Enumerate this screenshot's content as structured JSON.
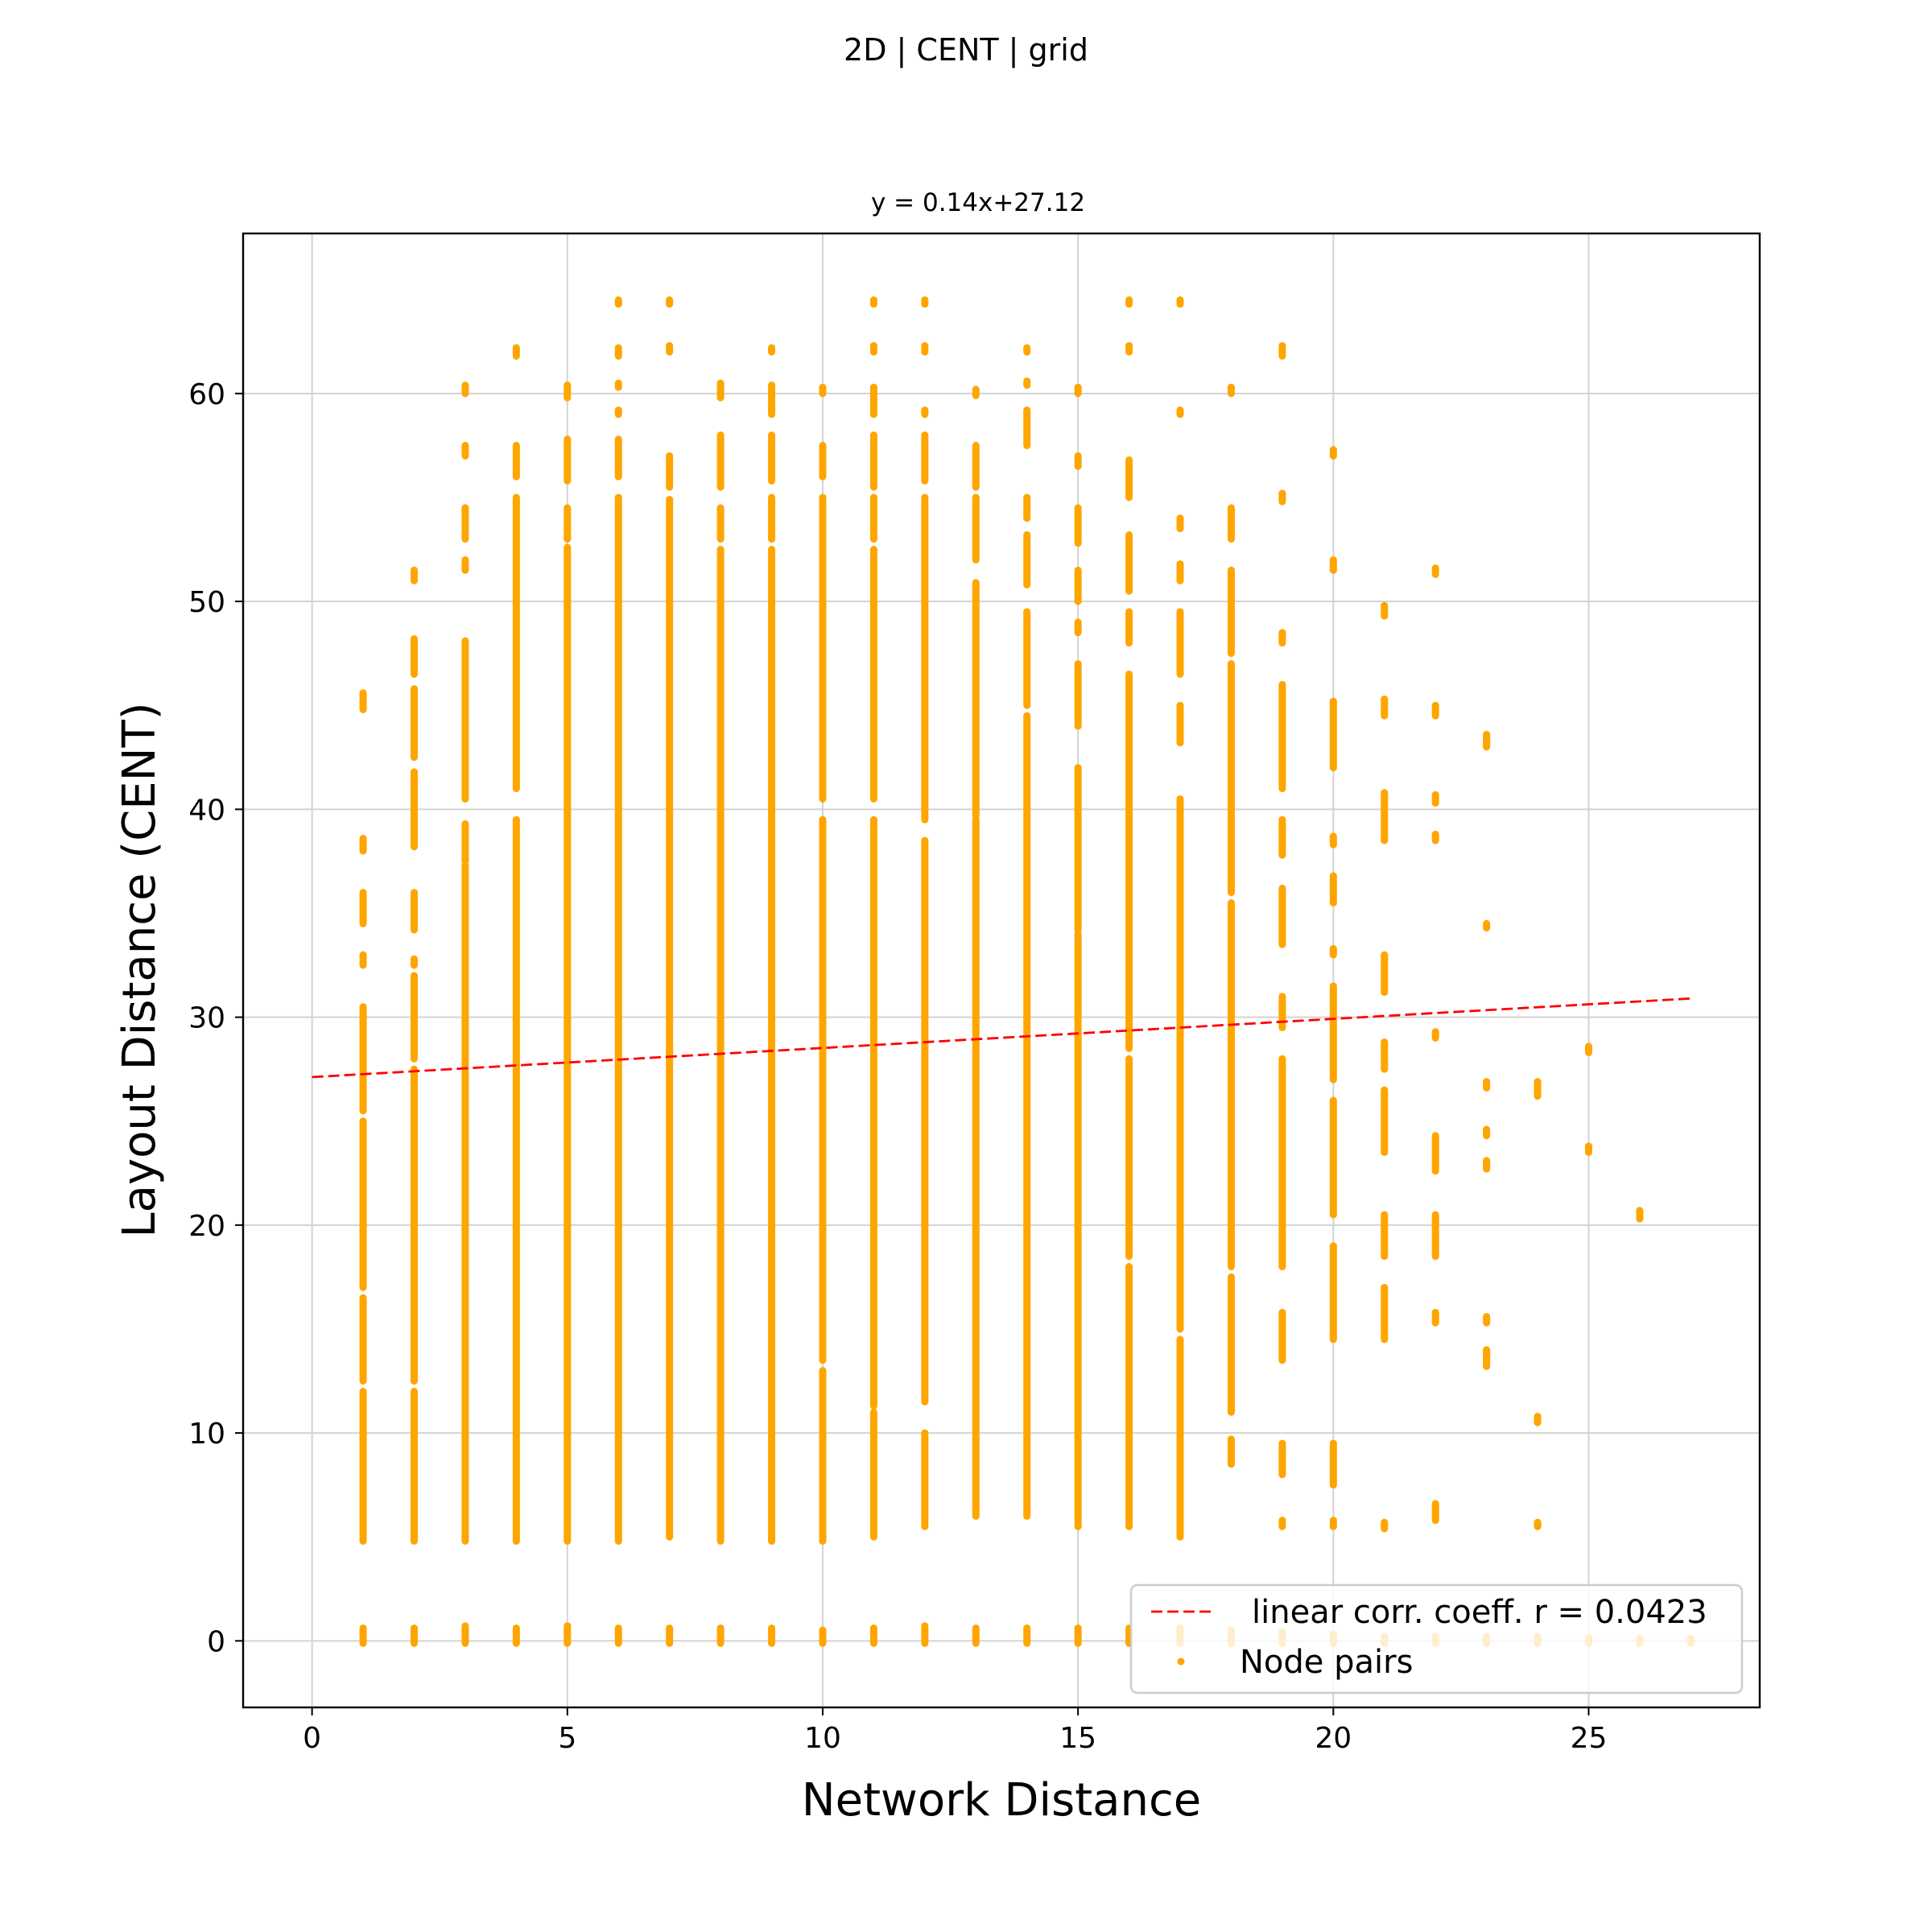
{
  "figure": {
    "suptitle": "2D | CENT | grid"
  },
  "chart_data": {
    "type": "scatter",
    "title": "y = 0.14x+27.12",
    "xlabel": "Network Distance",
    "ylabel": "Layout Distance (CENT)",
    "xlim": [
      -1.35,
      28.35
    ],
    "ylim": [
      -3.2,
      67.7
    ],
    "xticks": [
      0,
      5,
      10,
      15,
      20,
      25
    ],
    "yticks": [
      0,
      10,
      20,
      30,
      40,
      50,
      60
    ],
    "grid": true,
    "legend": {
      "placement": "lower right",
      "entries": [
        "linear corr. coeff. r = 0.0423",
        "Node pairs"
      ]
    },
    "colors": {
      "points": "#FFA500",
      "fit_line": "#FF0000",
      "grid": "#d3d3d3"
    },
    "fit_line": {
      "label": "linear corr. coeff. r = 0.0423",
      "slope": 0.14,
      "intercept": 27.12,
      "x_range": [
        0,
        27
      ]
    },
    "series": [
      {
        "name": "Node pairs",
        "columns": [
          {
            "x": 1,
            "zero_range": [
              0.0,
              0.5
            ],
            "segments": [
              [
                4.8,
                12
              ],
              [
                12.5,
                16.5
              ],
              [
                17,
                25
              ],
              [
                25.5,
                30.5
              ],
              [
                32.5,
                33
              ],
              [
                34.5,
                36
              ],
              [
                38,
                38.6
              ],
              [
                44.8,
                45.6
              ]
            ]
          },
          {
            "x": 2,
            "zero_range": [
              0.0,
              0.5
            ],
            "segments": [
              [
                4.8,
                12
              ],
              [
                12.5,
                27.5
              ],
              [
                28,
                32
              ],
              [
                32.5,
                32.8
              ],
              [
                34.2,
                36
              ],
              [
                38.2,
                41.8
              ],
              [
                42.5,
                45.8
              ],
              [
                46.5,
                48.2
              ],
              [
                51,
                51.5
              ]
            ]
          },
          {
            "x": 3,
            "zero_range": [
              0.0,
              0.6
            ],
            "segments": [
              [
                4.8,
                37.3
              ],
              [
                37.5,
                39.3
              ],
              [
                40.5,
                48.1
              ],
              [
                51.5,
                52
              ],
              [
                53,
                54.5
              ],
              [
                57,
                57.5
              ],
              [
                60,
                60.4
              ]
            ]
          },
          {
            "x": 4,
            "zero_range": [
              0.0,
              0.5
            ],
            "segments": [
              [
                4.8,
                39.5
              ],
              [
                41,
                55
              ],
              [
                56,
                57.5
              ],
              [
                61.8,
                62.2
              ]
            ]
          },
          {
            "x": 5,
            "zero_range": [
              0.0,
              0.6
            ],
            "segments": [
              [
                4.8,
                52.6
              ],
              [
                53,
                54.5
              ],
              [
                55.8,
                57.8
              ],
              [
                59.8,
                60.4
              ]
            ]
          },
          {
            "x": 6,
            "zero_range": [
              0.0,
              0.5
            ],
            "segments": [
              [
                4.8,
                55
              ],
              [
                56,
                57.8
              ],
              [
                59,
                59.2
              ],
              [
                60.3,
                60.5
              ],
              [
                61.8,
                62.2
              ],
              [
                64.3,
                64.5
              ]
            ]
          },
          {
            "x": 7,
            "zero_range": [
              0.0,
              0.5
            ],
            "segments": [
              [
                5,
                54.9
              ],
              [
                55.5,
                57
              ],
              [
                62,
                62.3
              ],
              [
                64.3,
                64.5
              ]
            ]
          },
          {
            "x": 8,
            "zero_range": [
              0.0,
              0.5
            ],
            "segments": [
              [
                4.8,
                52.5
              ],
              [
                53,
                54.5
              ],
              [
                55.5,
                58
              ],
              [
                59.8,
                60.5
              ]
            ]
          },
          {
            "x": 9,
            "zero_range": [
              0.0,
              0.5
            ],
            "segments": [
              [
                4.8,
                52.5
              ],
              [
                53,
                55
              ],
              [
                55.8,
                58
              ],
              [
                59,
                60.4
              ],
              [
                62,
                62.2
              ]
            ]
          },
          {
            "x": 10,
            "zero_range": [
              0.0,
              0.4
            ],
            "segments": [
              [
                4.8,
                13
              ],
              [
                13.5,
                39.5
              ],
              [
                40.5,
                55
              ],
              [
                56,
                57.5
              ],
              [
                60,
                60.3
              ]
            ]
          },
          {
            "x": 11,
            "zero_range": [
              0.0,
              0.5
            ],
            "segments": [
              [
                5,
                11
              ],
              [
                11.3,
                39.5
              ],
              [
                40.5,
                52.5
              ],
              [
                53,
                55
              ],
              [
                55.5,
                58
              ],
              [
                59,
                60.3
              ],
              [
                62,
                62.3
              ],
              [
                64.3,
                64.5
              ]
            ]
          },
          {
            "x": 12,
            "zero_range": [
              0.0,
              0.6
            ],
            "segments": [
              [
                5.5,
                10
              ],
              [
                11.5,
                38.5
              ],
              [
                39.5,
                55
              ],
              [
                55.8,
                58
              ],
              [
                59,
                59.2
              ],
              [
                62,
                62.3
              ],
              [
                64.3,
                64.5
              ]
            ]
          },
          {
            "x": 13,
            "zero_range": [
              0.0,
              0.5
            ],
            "segments": [
              [
                6,
                39.5
              ],
              [
                39.7,
                50.9
              ],
              [
                52,
                55
              ],
              [
                55.5,
                57.5
              ],
              [
                59.9,
                60.2
              ]
            ]
          },
          {
            "x": 14,
            "zero_range": [
              0.0,
              0.5
            ],
            "segments": [
              [
                6,
                44.5
              ],
              [
                45,
                49.5
              ],
              [
                50.8,
                53.2
              ],
              [
                54,
                55
              ],
              [
                57.5,
                59.2
              ],
              [
                60.4,
                60.6
              ],
              [
                62,
                62.2
              ]
            ]
          },
          {
            "x": 15,
            "zero_range": [
              0.0,
              0.5
            ],
            "segments": [
              [
                5.5,
                34
              ],
              [
                34.2,
                42
              ],
              [
                44,
                47
              ],
              [
                48.5,
                49
              ],
              [
                50,
                51.5
              ],
              [
                52.8,
                54.5
              ],
              [
                56.5,
                57
              ],
              [
                60,
                60.3
              ]
            ]
          },
          {
            "x": 16,
            "zero_range": [
              0.0,
              0.5
            ],
            "segments": [
              [
                5.5,
                18
              ],
              [
                18.5,
                28
              ],
              [
                28.5,
                46.5
              ],
              [
                48,
                49.5
              ],
              [
                50.5,
                53.2
              ],
              [
                55,
                56.8
              ],
              [
                62,
                62.3
              ],
              [
                64.3,
                64.5
              ]
            ]
          },
          {
            "x": 17,
            "zero_range": [
              0.0,
              0.5
            ],
            "segments": [
              [
                5,
                14.5
              ],
              [
                15,
                40.5
              ],
              [
                43.2,
                45
              ],
              [
                46.5,
                49.5
              ],
              [
                51,
                51.8
              ],
              [
                53.5,
                54
              ],
              [
                59,
                59.2
              ],
              [
                64.3,
                64.5
              ]
            ]
          },
          {
            "x": 18,
            "zero_range": [
              0.0,
              0.4
            ],
            "segments": [
              [
                8.5,
                9.7
              ],
              [
                11,
                17.5
              ],
              [
                18,
                35.5
              ],
              [
                36,
                47
              ],
              [
                47.5,
                51.5
              ],
              [
                53,
                54.5
              ],
              [
                60,
                60.3
              ]
            ]
          },
          {
            "x": 19,
            "zero_range": [
              0.0,
              0.3
            ],
            "segments": [
              [
                5.5,
                5.8
              ],
              [
                8,
                9.5
              ],
              [
                13.5,
                15.8
              ],
              [
                18,
                28
              ],
              [
                29.5,
                31
              ],
              [
                33.5,
                36.2
              ],
              [
                37.8,
                39.5
              ],
              [
                41,
                46
              ],
              [
                48,
                48.5
              ],
              [
                54.8,
                55.2
              ],
              [
                61.8,
                62.3
              ]
            ]
          },
          {
            "x": 20,
            "zero_range": [
              0.0,
              0.2
            ],
            "segments": [
              [
                5.5,
                5.8
              ],
              [
                7.5,
                9.5
              ],
              [
                14.5,
                19
              ],
              [
                20.5,
                26
              ],
              [
                27,
                31.5
              ],
              [
                33,
                33.3
              ],
              [
                35.5,
                36.8
              ],
              [
                38.3,
                38.7
              ],
              [
                42,
                45.2
              ],
              [
                51.5,
                52
              ],
              [
                57,
                57.3
              ]
            ]
          },
          {
            "x": 21,
            "zero_range": [
              0.0,
              0.1
            ],
            "segments": [
              [
                5.4,
                5.7
              ],
              [
                14.5,
                17
              ],
              [
                18.5,
                20.5
              ],
              [
                23.5,
                26.5
              ],
              [
                27.5,
                28.8
              ],
              [
                31.2,
                33
              ],
              [
                38.5,
                40.8
              ],
              [
                44.5,
                45.3
              ],
              [
                49.3,
                49.8
              ]
            ]
          },
          {
            "x": 22,
            "zero_range": [
              0.0,
              0.1
            ],
            "segments": [
              [
                5.8,
                6.6
              ],
              [
                15.3,
                15.8
              ],
              [
                18.5,
                20.5
              ],
              [
                22.6,
                24.3
              ],
              [
                29,
                29.3
              ],
              [
                38.5,
                38.8
              ],
              [
                40.3,
                40.7
              ],
              [
                44.5,
                45
              ],
              [
                51.3,
                51.6
              ]
            ]
          },
          {
            "x": 23,
            "zero_range": [
              0.0,
              0.1
            ],
            "segments": [
              [
                13.2,
                14
              ],
              [
                15.3,
                15.6
              ],
              [
                22.7,
                23.1
              ],
              [
                24.3,
                24.6
              ],
              [
                26.6,
                26.9
              ],
              [
                34.3,
                34.5
              ],
              [
                43,
                43.6
              ]
            ]
          },
          {
            "x": 24,
            "zero_range": [
              0.0,
              0.1
            ],
            "segments": [
              [
                5.5,
                5.7
              ],
              [
                10.5,
                10.8
              ],
              [
                26.2,
                26.9
              ]
            ]
          },
          {
            "x": 25,
            "zero_range": [
              0.0,
              0.05
            ],
            "segments": [
              [
                23.5,
                23.8
              ],
              [
                28.3,
                28.6
              ]
            ]
          },
          {
            "x": 26,
            "zero_range": [
              0.0,
              0.0
            ],
            "segments": [
              [
                20.3,
                20.7
              ]
            ]
          },
          {
            "x": 27,
            "zero_range": [
              0.0,
              0.0
            ],
            "segments": []
          }
        ]
      }
    ]
  }
}
